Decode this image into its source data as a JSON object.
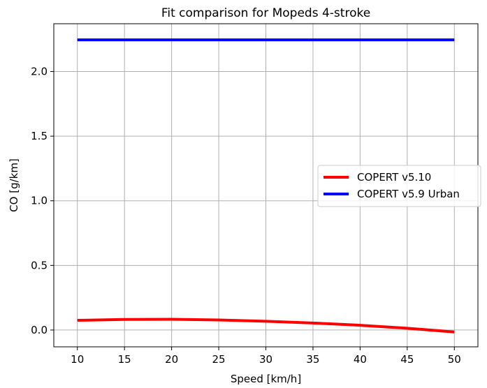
{
  "chart_data": {
    "type": "line",
    "title": "Fit comparison for Mopeds 4-stroke",
    "xlabel": "Speed [km/h]",
    "ylabel": "CO [g/km]",
    "xlim": [
      7.5,
      52.5
    ],
    "ylim": [
      -0.13,
      2.37
    ],
    "xticks": [
      10,
      15,
      20,
      25,
      30,
      35,
      40,
      45,
      50
    ],
    "yticks": [
      0.0,
      0.5,
      1.0,
      1.5,
      2.0
    ],
    "grid": true,
    "legend_position": "center-right",
    "series": [
      {
        "name": "COPERT v5.10",
        "color": "#ff0000",
        "x": [
          10,
          15,
          20,
          25,
          30,
          35,
          40,
          45,
          50
        ],
        "y": [
          0.075,
          0.082,
          0.083,
          0.078,
          0.068,
          0.054,
          0.037,
          0.014,
          -0.015
        ]
      },
      {
        "name": "COPERT v5.9 Urban",
        "color": "#0000ff",
        "x": [
          10,
          15,
          20,
          25,
          30,
          35,
          40,
          45,
          50
        ],
        "y": [
          2.245,
          2.245,
          2.245,
          2.245,
          2.245,
          2.245,
          2.245,
          2.245,
          2.245
        ]
      }
    ]
  }
}
